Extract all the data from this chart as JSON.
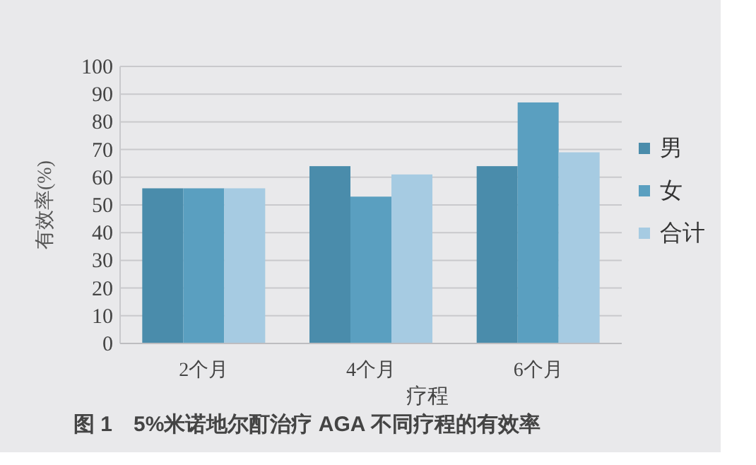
{
  "chart_data": {
    "type": "bar",
    "title": "图 1　5%米诺地尔酊治疗 AGA 不同疗程的有效率",
    "xlabel": "疗程",
    "ylabel": "有效率(%)",
    "categories": [
      "2个月",
      "4个月",
      "6个月"
    ],
    "series": [
      {
        "name": "男",
        "color": "#4a8cab",
        "values": [
          56,
          64,
          64
        ]
      },
      {
        "name": "女",
        "color": "#5a9fc0",
        "values": [
          56,
          53,
          87
        ]
      },
      {
        "name": "合计",
        "color": "#a6cbe2",
        "values": [
          56,
          61,
          69
        ]
      }
    ],
    "ylim": [
      0,
      100
    ],
    "yticks": [
      0,
      10,
      20,
      30,
      40,
      50,
      60,
      70,
      80,
      90,
      100
    ],
    "grid": "y",
    "legend": "right"
  }
}
